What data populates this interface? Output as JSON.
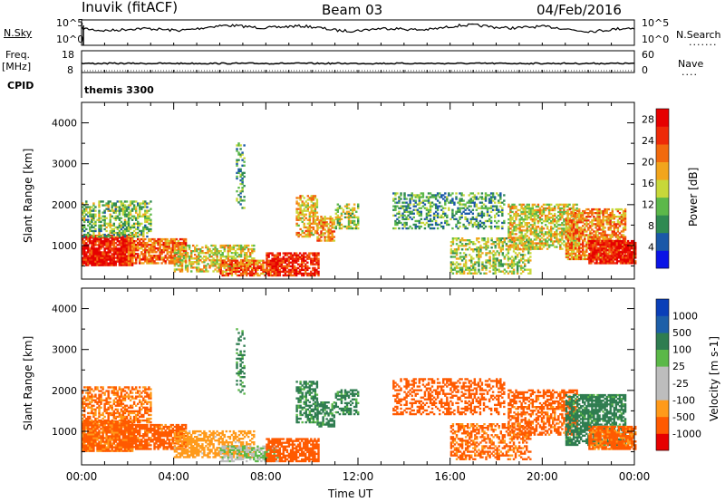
{
  "header": {
    "site": "Inuvik (fitACF)",
    "beam": "Beam 03",
    "date": "04/Feb/2016"
  },
  "side_labels": {
    "nsky": "N.Sky",
    "nsearch": "N.Search",
    "freq": "Freq.",
    "freq_unit": "[MHz]",
    "nave": "Nave",
    "cpid": "CPID",
    "cpid_value": "themis 3300"
  },
  "strip_ticks": {
    "nsky_top": "10^5",
    "nsky_bottom": "10^0",
    "nsearch_top": "10^5",
    "nsearch_bottom": "10^0",
    "freq_top": "18",
    "freq_bottom": "8",
    "nave_top": "60",
    "nave_bottom": "0"
  },
  "colors": {
    "power_scale": [
      "#0a14e6",
      "#1a58a8",
      "#2f8a52",
      "#5cb84a",
      "#c7d83a",
      "#f2a51c",
      "#f26a0e",
      "#ee2a08",
      "#e60000"
    ],
    "velocity_scale": [
      "#e60000",
      "#ff5a00",
      "#ff9a1a",
      "#bdbdbd",
      "#bdbdbd",
      "#5bb848",
      "#2f7d50",
      "#1d5fa8",
      "#0a3fb8"
    ]
  },
  "chart_data": [
    {
      "type": "heatmap",
      "panel": "power",
      "ylabel": "Slant Range [km]",
      "xlabel": "",
      "ylim": [
        180,
        4500
      ],
      "xlim": [
        0,
        24
      ],
      "yticks": [
        "1000",
        "2000",
        "3000",
        "4000"
      ],
      "colorbar": {
        "label": "Power [dB]",
        "ticks": [
          "4",
          "8",
          "12",
          "16",
          "20",
          "24",
          "28"
        ],
        "range": [
          0,
          30
        ]
      }
    },
    {
      "type": "heatmap",
      "panel": "velocity",
      "ylabel": "Slant Range [km]",
      "xlabel": "Time UT",
      "ylim": [
        180,
        4500
      ],
      "xlim": [
        0,
        24
      ],
      "yticks": [
        "1000",
        "2000",
        "3000",
        "4000"
      ],
      "xticks": [
        "00:00",
        "04:00",
        "08:00",
        "12:00",
        "16:00",
        "20:00",
        "00:00"
      ],
      "colorbar": {
        "label": "Velocity [m s-1]",
        "ticks": [
          "1000",
          "500",
          "100",
          "25",
          "-25",
          "-100",
          "-500",
          "-1000"
        ]
      }
    }
  ],
  "regions": [
    {
      "t0": 0.0,
      "t1": 2.2,
      "r0": 500,
      "r1": 1250,
      "p": 27,
      "v": -150,
      "d": 0.9
    },
    {
      "t0": 0.0,
      "t1": 3.0,
      "r0": 1200,
      "r1": 2100,
      "p": 12,
      "v": -120,
      "d": 0.55
    },
    {
      "t0": 2.0,
      "t1": 4.5,
      "r0": 550,
      "r1": 1150,
      "p": 22,
      "v": -200,
      "d": 0.8
    },
    {
      "t0": 4.0,
      "t1": 7.5,
      "r0": 350,
      "r1": 1000,
      "p": 16,
      "v": -60,
      "d": 0.6
    },
    {
      "t0": 6.0,
      "t1": 8.5,
      "r0": 250,
      "r1": 650,
      "p": 22,
      "v": 20,
      "d": 0.7
    },
    {
      "t0": 6.7,
      "t1": 7.1,
      "r0": 1900,
      "r1": 3500,
      "p": 10,
      "v": 150,
      "d": 0.35
    },
    {
      "t0": 8.0,
      "t1": 10.3,
      "r0": 250,
      "r1": 800,
      "p": 26,
      "v": -250,
      "d": 0.75
    },
    {
      "t0": 9.3,
      "t1": 10.2,
      "r0": 1200,
      "r1": 2200,
      "p": 18,
      "v": 150,
      "d": 0.6
    },
    {
      "t0": 10.2,
      "t1": 11.0,
      "r0": 1100,
      "r1": 1700,
      "p": 20,
      "v": 150,
      "d": 0.65
    },
    {
      "t0": 11.0,
      "t1": 12.0,
      "r0": 1400,
      "r1": 2000,
      "p": 14,
      "v": 150,
      "d": 0.55
    },
    {
      "t0": 13.5,
      "t1": 18.3,
      "r0": 1400,
      "r1": 2300,
      "p": 10,
      "v": -300,
      "d": 0.45
    },
    {
      "t0": 16.0,
      "t1": 19.5,
      "r0": 300,
      "r1": 1200,
      "p": 14,
      "v": -150,
      "d": 0.5
    },
    {
      "t0": 18.5,
      "t1": 21.5,
      "r0": 900,
      "r1": 2000,
      "p": 16,
      "v": -200,
      "d": 0.6
    },
    {
      "t0": 21.0,
      "t1": 23.6,
      "r0": 650,
      "r1": 1900,
      "p": 20,
      "v": 200,
      "d": 0.7
    },
    {
      "t0": 22.0,
      "t1": 24.0,
      "r0": 550,
      "r1": 1100,
      "p": 27,
      "v": -150,
      "d": 0.85
    }
  ]
}
